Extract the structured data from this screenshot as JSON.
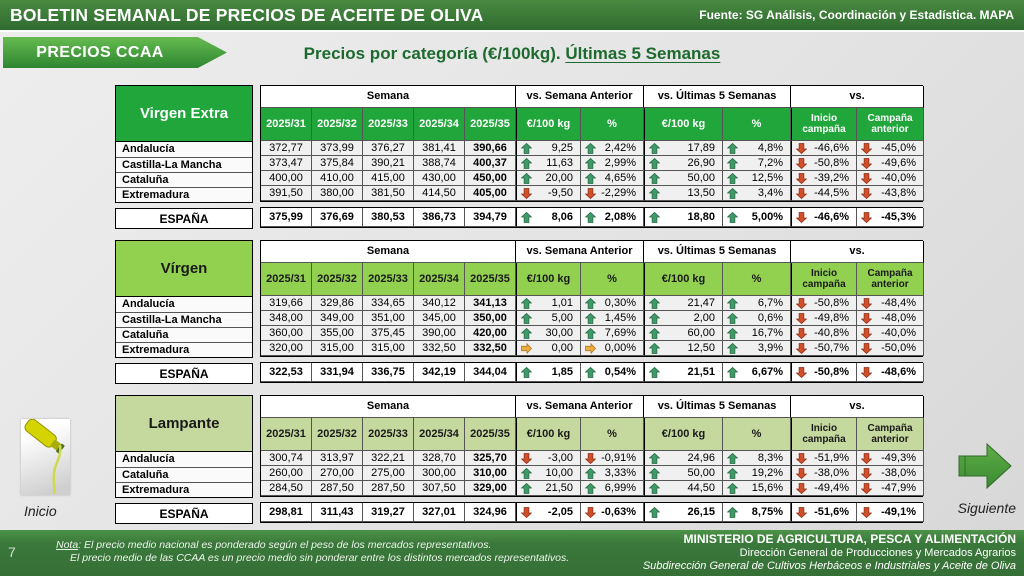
{
  "header": {
    "title": "BOLETIN SEMANAL DE PRECIOS DE ACEITE DE OLIVA",
    "source": "Fuente: SG Análisis, Coordinación y Estadística. MAPA",
    "badge": "PRECIOS CCAA",
    "subtitle_prefix": "Precios por categoría (€/100kg). ",
    "subtitle_underlined": "Últimas 5 Semanas"
  },
  "table_headers": {
    "groups": [
      "Semana",
      "vs. Semana Anterior",
      "vs. Últimas 5 Semanas",
      "vs."
    ],
    "weeks": [
      "2025/31",
      "2025/32",
      "2025/33",
      "2025/34",
      "2025/35"
    ],
    "subs": [
      "€/100 kg",
      "%",
      "€/100 kg",
      "%"
    ],
    "camp": [
      "Inicio campaña",
      "Campaña anterior"
    ]
  },
  "trend_icons": {
    "up": {
      "fill": "#3f9a68",
      "stroke": "#276b45"
    },
    "down": {
      "fill": "#d14f2a",
      "stroke": "#8f3119"
    },
    "flat": {
      "fill": "#e8ad3f",
      "stroke": "#a6751c"
    }
  },
  "tables": [
    {
      "category": "Virgen Extra",
      "header_bg": "#21a63c",
      "header_text": "#ffffff",
      "rows": [
        {
          "region": "Andalucía",
          "weeks": [
            "372,77",
            "373,99",
            "376,27",
            "381,41",
            "390,66"
          ],
          "changes": [
            [
              "up",
              "9,25"
            ],
            [
              "up",
              "2,42%"
            ],
            [
              "up",
              "17,89"
            ],
            [
              "up",
              "4,8%"
            ],
            [
              "down",
              "-46,6%"
            ],
            [
              "down",
              "-45,0%"
            ]
          ]
        },
        {
          "region": "Castilla-La Mancha",
          "weeks": [
            "373,47",
            "375,84",
            "390,21",
            "388,74",
            "400,37"
          ],
          "changes": [
            [
              "up",
              "11,63"
            ],
            [
              "up",
              "2,99%"
            ],
            [
              "up",
              "26,90"
            ],
            [
              "up",
              "7,2%"
            ],
            [
              "down",
              "-50,8%"
            ],
            [
              "down",
              "-49,6%"
            ]
          ]
        },
        {
          "region": "Cataluña",
          "weeks": [
            "400,00",
            "410,00",
            "415,00",
            "430,00",
            "450,00"
          ],
          "changes": [
            [
              "up",
              "20,00"
            ],
            [
              "up",
              "4,65%"
            ],
            [
              "up",
              "50,00"
            ],
            [
              "up",
              "12,5%"
            ],
            [
              "down",
              "-39,2%"
            ],
            [
              "down",
              "-40,0%"
            ]
          ]
        },
        {
          "region": "Extremadura",
          "weeks": [
            "391,50",
            "380,00",
            "381,50",
            "414,50",
            "405,00"
          ],
          "changes": [
            [
              "down",
              "-9,50"
            ],
            [
              "down",
              "-2,29%"
            ],
            [
              "up",
              "13,50"
            ],
            [
              "up",
              "3,4%"
            ],
            [
              "down",
              "-44,5%"
            ],
            [
              "down",
              "-43,8%"
            ]
          ]
        }
      ],
      "total": {
        "region": "ESPAÑA",
        "weeks": [
          "375,99",
          "376,69",
          "380,53",
          "386,73",
          "394,79"
        ],
        "changes": [
          [
            "up",
            "8,06"
          ],
          [
            "up",
            "2,08%"
          ],
          [
            "up",
            "18,80"
          ],
          [
            "up",
            "5,00%"
          ],
          [
            "down",
            "-46,6%"
          ],
          [
            "down",
            "-45,3%"
          ]
        ]
      }
    },
    {
      "category": "Vírgen",
      "header_bg": "#92d050",
      "header_text": "#1a1a1a",
      "rows": [
        {
          "region": "Andalucía",
          "weeks": [
            "319,66",
            "329,86",
            "334,65",
            "340,12",
            "341,13"
          ],
          "changes": [
            [
              "up",
              "1,01"
            ],
            [
              "up",
              "0,30%"
            ],
            [
              "up",
              "21,47"
            ],
            [
              "up",
              "6,7%"
            ],
            [
              "down",
              "-50,8%"
            ],
            [
              "down",
              "-48,4%"
            ]
          ]
        },
        {
          "region": "Castilla-La Mancha",
          "weeks": [
            "348,00",
            "349,00",
            "351,00",
            "345,00",
            "350,00"
          ],
          "changes": [
            [
              "up",
              "5,00"
            ],
            [
              "up",
              "1,45%"
            ],
            [
              "up",
              "2,00"
            ],
            [
              "up",
              "0,6%"
            ],
            [
              "down",
              "-49,8%"
            ],
            [
              "down",
              "-48,0%"
            ]
          ]
        },
        {
          "region": "Cataluña",
          "weeks": [
            "360,00",
            "355,00",
            "375,45",
            "390,00",
            "420,00"
          ],
          "changes": [
            [
              "up",
              "30,00"
            ],
            [
              "up",
              "7,69%"
            ],
            [
              "up",
              "60,00"
            ],
            [
              "up",
              "16,7%"
            ],
            [
              "down",
              "-40,8%"
            ],
            [
              "down",
              "-40,0%"
            ]
          ]
        },
        {
          "region": "Extremadura",
          "weeks": [
            "320,00",
            "315,00",
            "315,00",
            "332,50",
            "332,50"
          ],
          "changes": [
            [
              "flat",
              "0,00"
            ],
            [
              "flat",
              "0,00%"
            ],
            [
              "up",
              "12,50"
            ],
            [
              "up",
              "3,9%"
            ],
            [
              "down",
              "-50,7%"
            ],
            [
              "down",
              "-50,0%"
            ]
          ]
        }
      ],
      "total": {
        "region": "ESPAÑA",
        "weeks": [
          "322,53",
          "331,94",
          "336,75",
          "342,19",
          "344,04"
        ],
        "changes": [
          [
            "up",
            "1,85"
          ],
          [
            "up",
            "0,54%"
          ],
          [
            "up",
            "21,51"
          ],
          [
            "up",
            "6,67%"
          ],
          [
            "down",
            "-50,8%"
          ],
          [
            "down",
            "-48,6%"
          ]
        ]
      }
    },
    {
      "category": "Lampante",
      "header_bg": "#c5d89e",
      "header_text": "#1a1a1a",
      "rows": [
        {
          "region": "Andalucía",
          "weeks": [
            "300,74",
            "313,97",
            "322,21",
            "328,70",
            "325,70"
          ],
          "changes": [
            [
              "down",
              "-3,00"
            ],
            [
              "down",
              "-0,91%"
            ],
            [
              "up",
              "24,96"
            ],
            [
              "up",
              "8,3%"
            ],
            [
              "down",
              "-51,9%"
            ],
            [
              "down",
              "-49,3%"
            ]
          ]
        },
        {
          "region": "Cataluña",
          "weeks": [
            "260,00",
            "270,00",
            "275,00",
            "300,00",
            "310,00"
          ],
          "changes": [
            [
              "up",
              "10,00"
            ],
            [
              "up",
              "3,33%"
            ],
            [
              "up",
              "50,00"
            ],
            [
              "up",
              "19,2%"
            ],
            [
              "down",
              "-38,0%"
            ],
            [
              "down",
              "-38,0%"
            ]
          ]
        },
        {
          "region": "Extremadura",
          "weeks": [
            "284,50",
            "287,50",
            "287,50",
            "307,50",
            "329,00"
          ],
          "changes": [
            [
              "up",
              "21,50"
            ],
            [
              "up",
              "6,99%"
            ],
            [
              "up",
              "44,50"
            ],
            [
              "up",
              "15,6%"
            ],
            [
              "down",
              "-49,4%"
            ],
            [
              "down",
              "-47,9%"
            ]
          ]
        }
      ],
      "total": {
        "region": "ESPAÑA",
        "weeks": [
          "298,81",
          "311,43",
          "319,27",
          "327,01",
          "324,96"
        ],
        "changes": [
          [
            "down",
            "-2,05"
          ],
          [
            "down",
            "-0,63%"
          ],
          [
            "up",
            "26,15"
          ],
          [
            "up",
            "8,75%"
          ],
          [
            "down",
            "-51,6%"
          ],
          [
            "down",
            "-49,1%"
          ]
        ]
      }
    }
  ],
  "nav": {
    "inicio": "Inicio",
    "siguiente": "Siguiente"
  },
  "footer": {
    "page": "7",
    "note_label": "Nota",
    "note1_rest": ": El precio medio nacional es ponderado según el peso de los mercados representativos.",
    "note2": "El precio medio de las CCAA es un precio medio sin ponderar entre los distintos mercados representativos.",
    "ministry1": "MINISTERIO DE AGRICULTURA, PESCA Y ALIMENTACIÓN",
    "ministry2": "Dirección General de Producciones y Mercados Agrarios",
    "ministry3": "Subdirección General de Cultivos Herbáceos e Industriales y Aceite de Oliva"
  }
}
